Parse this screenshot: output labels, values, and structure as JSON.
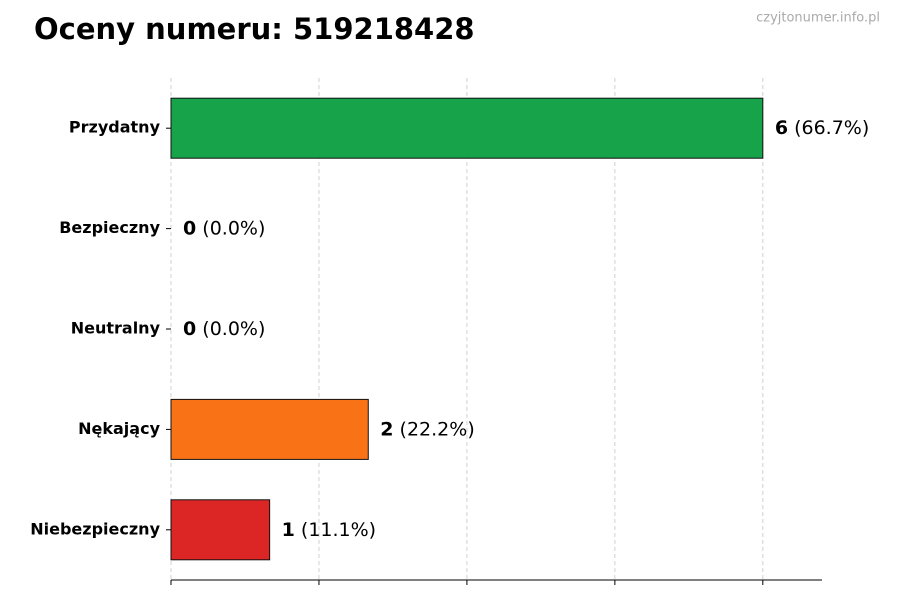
{
  "chart_data": {
    "type": "barh",
    "title": "Oceny numeru: 519218428",
    "watermark": "czyjtonumer.info.pl",
    "categories": [
      "Przydatny",
      "Bezpieczny",
      "Neutralny",
      "Nękający",
      "Niebezpieczny"
    ],
    "values": [
      6,
      0,
      0,
      2,
      1
    ],
    "percentages": [
      66.7,
      0.0,
      0.0,
      22.2,
      11.1
    ],
    "percentage_labels": [
      "(66.7%)",
      "(0.0%)",
      "(0.0%)",
      "(22.2%)",
      "(11.1%)"
    ],
    "colors": [
      "#16a34a",
      "#2563eb",
      "#9ca3af",
      "#f97316",
      "#dc2626"
    ],
    "xlim": [
      0,
      6.6
    ],
    "xticks": [
      0,
      1.5,
      3,
      4.5,
      6
    ],
    "grid": true
  }
}
